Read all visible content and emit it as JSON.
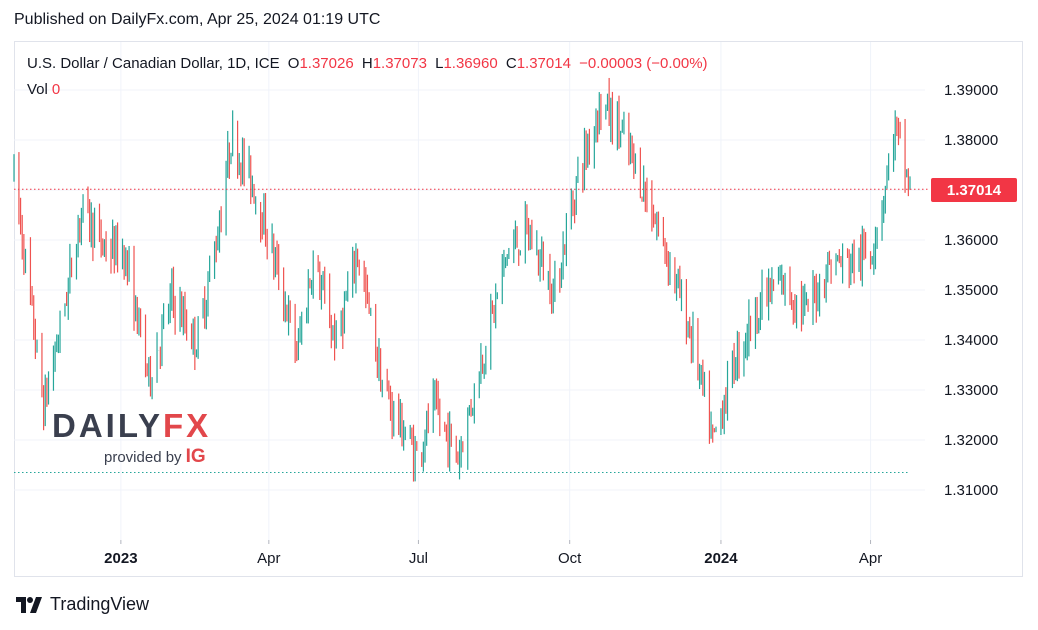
{
  "published": "Published on DailyFx.com, Apr 25, 2024 01:19 UTC",
  "legend": {
    "symbol": "U.S. Dollar / Canadian Dollar, 1D, ICE",
    "o_label": "O",
    "o_value": "1.37026",
    "h_label": "H",
    "h_value": "1.37073",
    "l_label": "L",
    "l_value": "1.36960",
    "c_label": "C",
    "c_value": "1.37014",
    "change": "−0.00003 (−0.00%)",
    "vol_label": "Vol",
    "vol_value": "0"
  },
  "last_price_label": "1.37014",
  "watermark": {
    "logo_left": "DAILY",
    "logo_right": "FX",
    "provided_by": "provided by",
    "brand": "IG"
  },
  "tradingview_label": "TradingView",
  "colors": {
    "up": "#26a69a",
    "down": "#ef5350",
    "last_price": "#f23645",
    "grid": "#f0f3fa",
    "axis_text": "#131722"
  },
  "chart_data": {
    "type": "candlestick",
    "title": "U.S. Dollar / Canadian Dollar, 1D, ICE",
    "ylim": [
      1.3,
      1.393
    ],
    "y_ticks": [
      "1.31000",
      "1.32000",
      "1.33000",
      "1.34000",
      "1.35000",
      "1.36000",
      "1.37000",
      "1.38000",
      "1.39000"
    ],
    "x_ticks": [
      {
        "label": "2023",
        "bold": true,
        "date": "2023-01-01"
      },
      {
        "label": "Apr",
        "bold": false,
        "date": "2023-04-01"
      },
      {
        "label": "Jul",
        "bold": false,
        "date": "2023-07-01"
      },
      {
        "label": "Oct",
        "bold": false,
        "date": "2023-10-01"
      },
      {
        "label": "2024",
        "bold": true,
        "date": "2024-01-01"
      },
      {
        "label": "Apr",
        "bold": false,
        "date": "2024-04-01"
      }
    ],
    "x_start": "2022-10-28",
    "x_end": "2024-04-25",
    "last_close": 1.37014,
    "support_level": 1.3135,
    "grid": true,
    "path_points": [
      [
        "2022-10-28",
        1.373
      ],
      [
        "2022-11-04",
        1.3555
      ],
      [
        "2022-11-15",
        1.3265
      ],
      [
        "2022-11-28",
        1.3475
      ],
      [
        "2022-12-08",
        1.3665
      ],
      [
        "2022-12-22",
        1.3585
      ],
      [
        "2023-01-03",
        1.3575
      ],
      [
        "2023-01-18",
        1.3325
      ],
      [
        "2023-02-01",
        1.3485
      ],
      [
        "2023-02-16",
        1.3395
      ],
      [
        "2023-03-01",
        1.3615
      ],
      [
        "2023-03-09",
        1.3805
      ],
      [
        "2023-03-22",
        1.3715
      ],
      [
        "2023-04-05",
        1.3555
      ],
      [
        "2023-04-18",
        1.3375
      ],
      [
        "2023-04-28",
        1.3555
      ],
      [
        "2023-05-12",
        1.3395
      ],
      [
        "2023-05-25",
        1.3575
      ],
      [
        "2023-06-10",
        1.3295
      ],
      [
        "2023-06-30",
        1.3165
      ],
      [
        "2023-07-10",
        1.3265
      ],
      [
        "2023-07-25",
        1.3165
      ],
      [
        "2023-08-08",
        1.3355
      ],
      [
        "2023-08-24",
        1.3575
      ],
      [
        "2023-09-05",
        1.3615
      ],
      [
        "2023-09-22",
        1.3495
      ],
      [
        "2023-10-05",
        1.3715
      ],
      [
        "2023-10-20",
        1.3875
      ],
      [
        "2023-11-01",
        1.3815
      ],
      [
        "2023-11-15",
        1.3705
      ],
      [
        "2023-12-01",
        1.3555
      ],
      [
        "2023-12-15",
        1.3395
      ],
      [
        "2023-12-27",
        1.3195
      ],
      [
        "2024-01-10",
        1.3365
      ],
      [
        "2024-01-25",
        1.3475
      ],
      [
        "2024-02-07",
        1.3515
      ],
      [
        "2024-02-22",
        1.3455
      ],
      [
        "2024-03-07",
        1.3555
      ],
      [
        "2024-03-20",
        1.3555
      ],
      [
        "2024-04-01",
        1.3575
      ],
      [
        "2024-04-08",
        1.3675
      ],
      [
        "2024-04-16",
        1.3825
      ],
      [
        "2024-04-25",
        1.37014
      ]
    ]
  }
}
